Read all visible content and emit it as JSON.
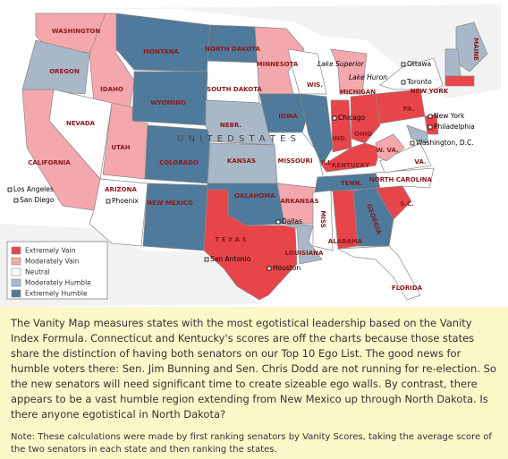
{
  "map": {
    "country_label": "U N I T E D   S T A T E S",
    "states": [
      {
        "label": "WASHINGTON",
        "color": "#f4a8ad"
      },
      {
        "label": "OREGON",
        "color": "#a9b8c8"
      },
      {
        "label": "IDAHO",
        "color": "#f4a8ad"
      },
      {
        "label": "MONTANA",
        "color": "#4f7a9c"
      },
      {
        "label": "NORTH DAKOTA",
        "color": "#4f7a9c"
      },
      {
        "label": "SOUTH DAKOTA",
        "color": "#ffffff"
      },
      {
        "label": "WYOMING",
        "color": "#4f7a9c"
      },
      {
        "label": "NEVADA",
        "color": "#ffffff"
      },
      {
        "label": "CALIFORNIA",
        "color": "#f4a8ad"
      },
      {
        "label": "UTAH",
        "color": "#f4a8ad"
      },
      {
        "label": "ARIZONA",
        "color": "#ffffff"
      },
      {
        "label": "COLORADO",
        "color": "#4f7a9c"
      },
      {
        "label": "NEW MEXICO",
        "color": "#4f7a9c"
      },
      {
        "label": "NEBR.",
        "color": "#a9b8c8"
      },
      {
        "label": "KANSAS",
        "color": "#a9b8c8"
      },
      {
        "label": "OKLAHOMA",
        "color": "#4f7a9c"
      },
      {
        "label": "T E X A S",
        "color": "#e8454a"
      },
      {
        "label": "MINNESOTA",
        "color": "#f4a8ad"
      },
      {
        "label": "IOWA",
        "color": "#4f7a9c"
      },
      {
        "label": "MISSOURI",
        "color": "#ffffff"
      },
      {
        "label": "ARKANSAS",
        "color": "#f4a8ad"
      },
      {
        "label": "LOUISIANA",
        "color": "#a9b8c8"
      },
      {
        "label": "WIS.",
        "color": "#ffffff"
      },
      {
        "label": "ILL.",
        "color": "#4f7a9c"
      },
      {
        "label": "MICHIGAN",
        "color": "#f4a8ad"
      },
      {
        "label": "IND.",
        "color": "#e8454a"
      },
      {
        "label": "OHIO",
        "color": "#e8454a"
      },
      {
        "label": "KENTUCKY",
        "color": "#e8454a"
      },
      {
        "label": "TENN.",
        "color": "#4f7a9c"
      },
      {
        "label": "MISS",
        "color": "#ffffff"
      },
      {
        "label": "ALABAMA",
        "color": "#e8454a"
      },
      {
        "label": "GEORGIA",
        "color": "#4f7a9c"
      },
      {
        "label": "FLORIDA",
        "color": "#ffffff"
      },
      {
        "label": "S.C.",
        "color": "#e8454a"
      },
      {
        "label": "NORTH CAROLINA",
        "color": "#ffffff"
      },
      {
        "label": "VA.",
        "color": "#ffffff"
      },
      {
        "label": "W. VA.",
        "color": "#f4a8ad"
      },
      {
        "label": "PA.",
        "color": "#e8454a"
      },
      {
        "label": "NEW YORK",
        "color": "#ffffff"
      },
      {
        "label": "MAINE",
        "color": "#a9b8c8"
      },
      {
        "color": "#a9b8c8"
      },
      {
        "color": "#e8454a"
      },
      {
        "color": "#e8454a"
      },
      {
        "color": "#a9b8c8"
      }
    ],
    "places": [
      "Lake Superior",
      "Lake Huron",
      "Ottawa",
      "Toronto",
      "Chicago",
      "New York",
      "Philadelphia",
      "Washington, D.C.",
      "Los Angeles",
      "San Diego",
      "Phoenix",
      "Dallas",
      "San Antonio",
      "Houston"
    ],
    "legend": [
      {
        "label": "Extremely Vain",
        "color": "#e8454a"
      },
      {
        "label": "Moderately Vain",
        "color": "#f4a8ad"
      },
      {
        "label": "Neutral",
        "color": "#ffffff"
      },
      {
        "label": "Moderately Humble",
        "color": "#a9b8c8"
      },
      {
        "label": "Extremely Humble",
        "color": "#4f7a9c"
      }
    ]
  },
  "caption": {
    "paragraph": "The Vanity Map measures states with the most egotistical leadership based on the Vanity Index Formula. Connecticut and Kentucky's scores are off the charts because those states share the distinction of having both senators on our Top 10 Ego List. The good news for humble voters there: Sen. Jim Bunning and Sen. Chris Dodd are not running for re-election. So the new senators will need significant time to create sizeable ego walls. By contrast, there appears to be a vast humble region extending from New Mexico up through North Dakota. Is there anyone egotistical in North Dakota?",
    "note": "Note: These calculations were made by first ranking senators by Vanity Scores, taking the average score of the two senators in each state and then ranking the states."
  }
}
